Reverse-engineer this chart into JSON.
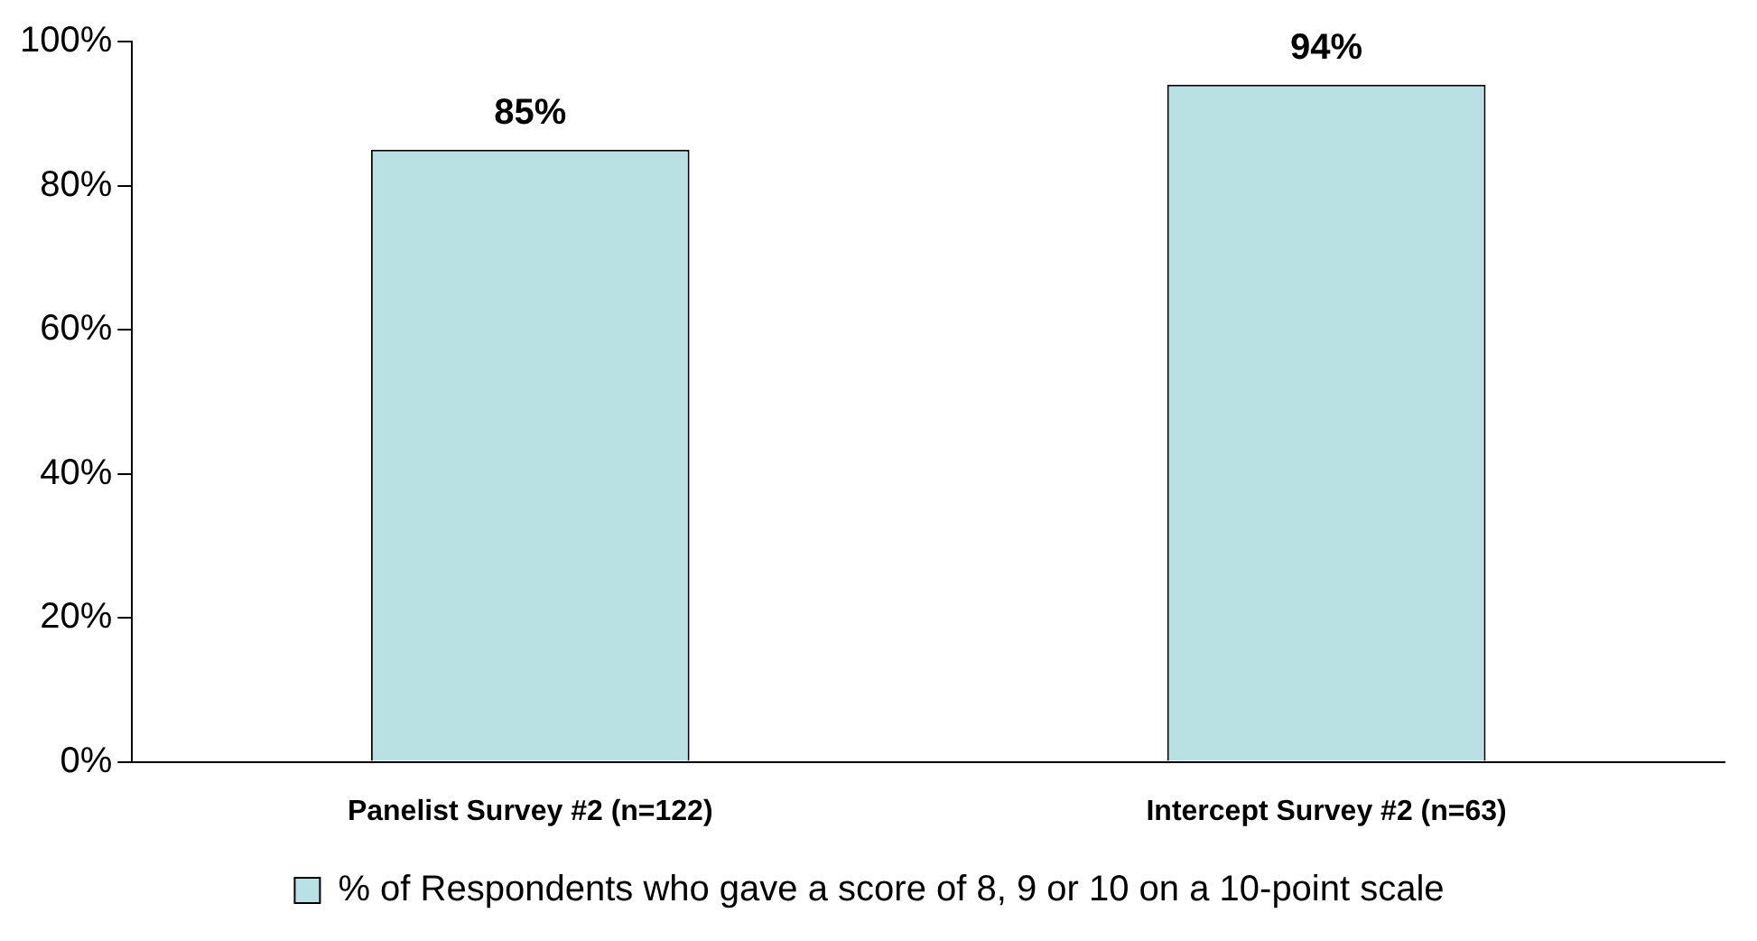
{
  "chart_data": {
    "type": "bar",
    "categories": [
      "Panelist Survey #2 (n=122)",
      "Intercept Survey #2 (n=63)"
    ],
    "series": [
      {
        "name": "% of Respondents who gave a score of 8, 9 or 10 on a 10-point scale",
        "color": "#b9e1e3",
        "values": [
          85,
          94
        ],
        "value_labels": [
          "85%",
          "94%"
        ]
      }
    ],
    "ylim": [
      0,
      100
    ],
    "yticks": [
      {
        "value": 0,
        "label": "0%"
      },
      {
        "value": 20,
        "label": "20%"
      },
      {
        "value": 40,
        "label": "40%"
      },
      {
        "value": 60,
        "label": "60%"
      },
      {
        "value": 80,
        "label": "80%"
      },
      {
        "value": 100,
        "label": "100%"
      }
    ],
    "grid": false,
    "legend": "bottom"
  }
}
